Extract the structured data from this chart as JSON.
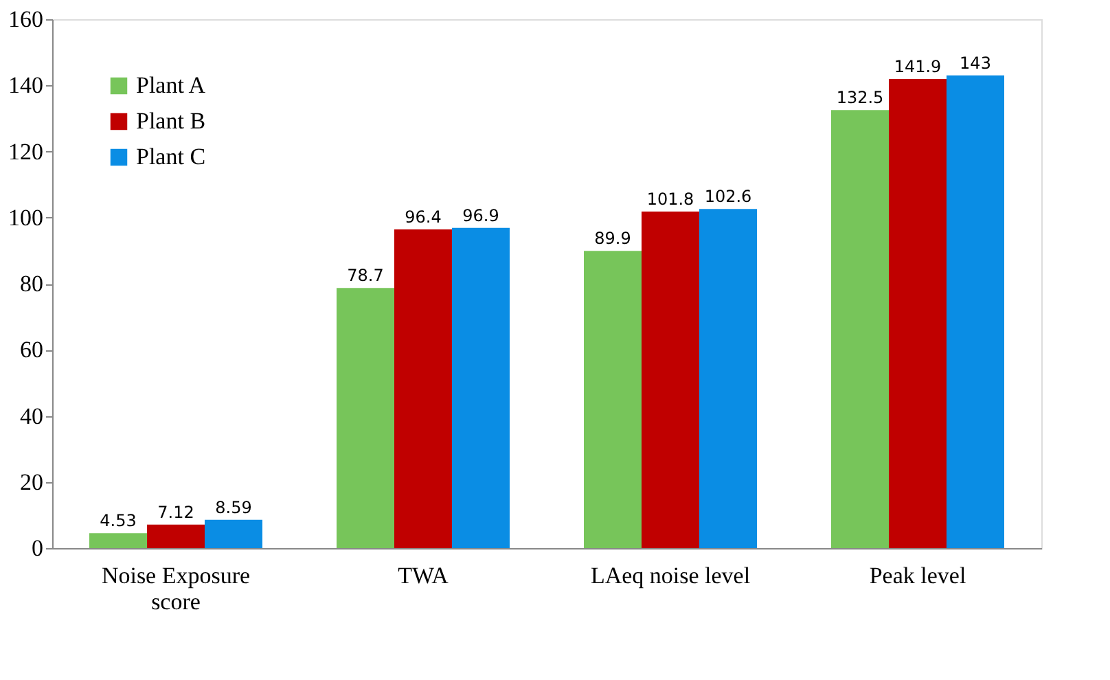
{
  "chart_data": {
    "type": "bar",
    "categories": [
      "Noise Exposure score",
      "TWA",
      "LAeq noise level",
      "Peak level"
    ],
    "series": [
      {
        "name": "Plant A",
        "color": "#77c55a",
        "values": [
          4.53,
          78.7,
          89.9,
          132.5
        ]
      },
      {
        "name": "Plant B",
        "color": "#c00000",
        "values": [
          7.12,
          96.4,
          101.8,
          141.9
        ]
      },
      {
        "name": "Plant C",
        "color": "#0a8de4",
        "values": [
          8.59,
          96.9,
          102.6,
          143
        ]
      }
    ],
    "ylim": [
      0,
      160
    ],
    "yticks": [
      0,
      20,
      40,
      60,
      80,
      100,
      120,
      140,
      160
    ],
    "grid": false,
    "legend": "top left",
    "data_labels": true
  }
}
